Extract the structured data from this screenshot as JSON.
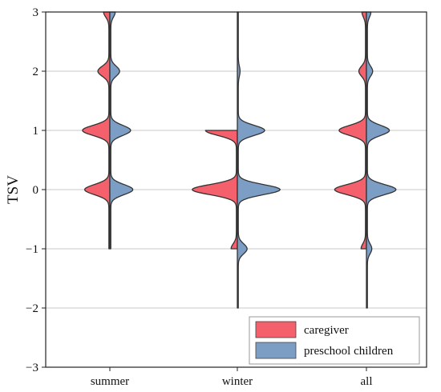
{
  "chart_data": {
    "type": "violin",
    "split": true,
    "categories": [
      "summer",
      "winter",
      "all"
    ],
    "ylabel": "TSV",
    "xlabel": "",
    "ylim": [
      -3,
      3
    ],
    "yticks": [
      3,
      2,
      1,
      0,
      -1,
      -2,
      -3
    ],
    "ytick_labels": [
      "3",
      "2",
      "1",
      "0",
      "−1",
      "−2",
      "−3"
    ],
    "grid": "horizontal",
    "legend_position": "lower-right",
    "series": [
      {
        "name": "caregiver",
        "color": "#f4606b",
        "groups": [
          {
            "category": "summer",
            "range": [
              -1,
              3
            ],
            "peaks": [
              {
                "y": 0,
                "width": 0.55
              },
              {
                "y": 1,
                "width": 0.6
              },
              {
                "y": 2,
                "width": 0.25
              },
              {
                "y": 3,
                "width": 0.12
              }
            ]
          },
          {
            "category": "winter",
            "range": [
              -1,
              1
            ],
            "peaks": [
              {
                "y": 0,
                "width": 1.0
              },
              {
                "y": 1,
                "width": 0.7
              },
              {
                "y": -1,
                "width": 0.12
              }
            ]
          },
          {
            "category": "all",
            "range": [
              -1,
              3
            ],
            "peaks": [
              {
                "y": 0,
                "width": 0.7
              },
              {
                "y": 1,
                "width": 0.6
              },
              {
                "y": 2,
                "width": 0.15
              },
              {
                "y": 3,
                "width": 0.08
              },
              {
                "y": -1,
                "width": 0.1
              }
            ]
          }
        ]
      },
      {
        "name": "preschool children",
        "color": "#7c9ec4",
        "groups": [
          {
            "category": "summer",
            "range": [
              -1,
              3
            ],
            "peaks": [
              {
                "y": 0,
                "width": 0.5
              },
              {
                "y": 1,
                "width": 0.45
              },
              {
                "y": 2,
                "width": 0.2
              },
              {
                "y": 3,
                "width": 0.1
              }
            ]
          },
          {
            "category": "winter",
            "range": [
              -2,
              3
            ],
            "peaks": [
              {
                "y": 0,
                "width": 0.95
              },
              {
                "y": 1,
                "width": 0.6
              },
              {
                "y": -1,
                "width": 0.2
              },
              {
                "y": 2,
                "width": 0.04
              }
            ]
          },
          {
            "category": "all",
            "range": [
              -2,
              3
            ],
            "peaks": [
              {
                "y": 0,
                "width": 0.65
              },
              {
                "y": 1,
                "width": 0.5
              },
              {
                "y": 2,
                "width": 0.12
              },
              {
                "y": 3,
                "width": 0.08
              },
              {
                "y": -1,
                "width": 0.1
              }
            ]
          }
        ]
      }
    ]
  }
}
